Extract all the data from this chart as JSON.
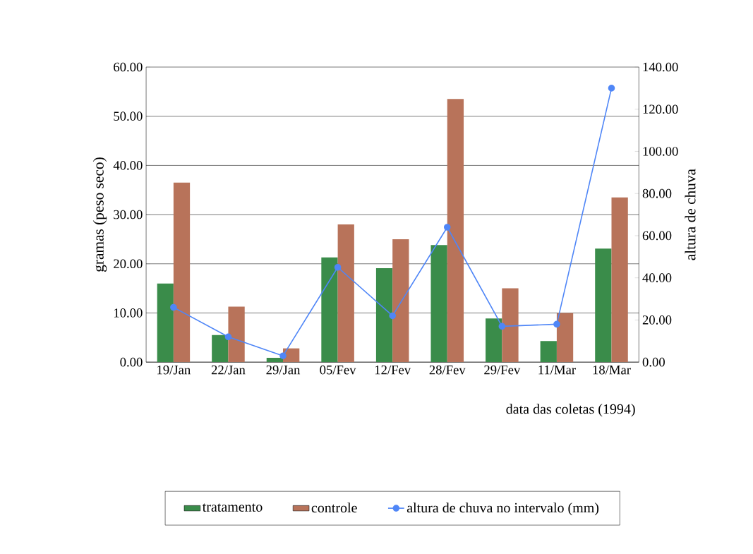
{
  "chart_data": {
    "type": "bar",
    "categories": [
      "19/Jan",
      "22/Jan",
      "29/Jan",
      "05/Fev",
      "12/Fev",
      "28/Fev",
      "29/Fev",
      "11/Mar",
      "18/Mar"
    ],
    "series": [
      {
        "name": "tratamento",
        "color": "#3a8c4a",
        "values": [
          16.0,
          5.5,
          0.9,
          21.3,
          19.1,
          23.8,
          8.9,
          4.3,
          23.1
        ]
      },
      {
        "name": "controle",
        "color": "#b8735a",
        "values": [
          36.5,
          11.3,
          2.8,
          28.0,
          25.0,
          53.5,
          15.0,
          10.0,
          33.5
        ]
      },
      {
        "name": "altura de chuva no intervalo (mm)",
        "type": "line",
        "axis": "y2",
        "color": "#4f86f7",
        "marker": "circle",
        "values": [
          26,
          12,
          3,
          45,
          22,
          64,
          17,
          18,
          130
        ]
      }
    ],
    "xlabel": "data das coletas (1994)",
    "ylabel": "gramas (peso seco)",
    "y2label": "altura de chuva",
    "ylim": [
      0,
      60
    ],
    "yticks": [
      {
        "value": 0,
        "label": "0.00"
      },
      {
        "value": 10,
        "label": "10.00"
      },
      {
        "value": 20,
        "label": "20.00"
      },
      {
        "value": 30,
        "label": "30.00"
      },
      {
        "value": 40,
        "label": "40.00"
      },
      {
        "value": 50,
        "label": "50.00"
      },
      {
        "value": 60,
        "label": "60.00"
      }
    ],
    "y2lim": [
      0,
      140
    ],
    "y2ticks": [
      {
        "value": 0,
        "label": "0.00"
      },
      {
        "value": 20,
        "label": "20.00"
      },
      {
        "value": 40,
        "label": "40.00"
      },
      {
        "value": 60,
        "label": "60.00"
      },
      {
        "value": 80,
        "label": "80.00"
      },
      {
        "value": 100,
        "label": "100.00"
      },
      {
        "value": 120,
        "label": "120.00"
      },
      {
        "value": 140,
        "label": "140.00"
      }
    ],
    "grid": "y",
    "legend": "bottom"
  }
}
